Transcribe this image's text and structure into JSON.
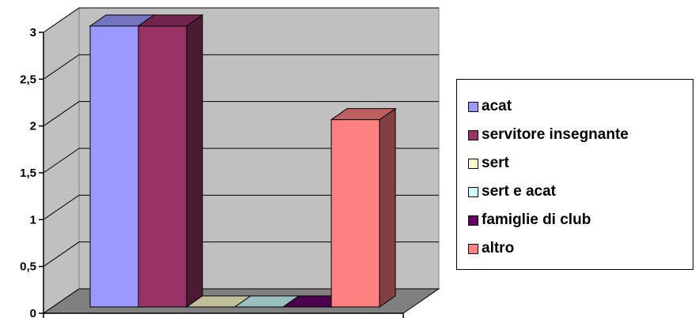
{
  "chart_data": {
    "type": "bar",
    "title": "",
    "xlabel": "",
    "ylabel": "",
    "categories": [
      ""
    ],
    "ylim": [
      0,
      3
    ],
    "yticks": [
      "0",
      "0,5",
      "1",
      "1,5",
      "2",
      "2,5",
      "3"
    ],
    "grid": true,
    "legend_position": "right",
    "series": [
      {
        "name": "acat",
        "values": [
          3
        ],
        "color": "#9999FF"
      },
      {
        "name": "servitore insegnante",
        "values": [
          3
        ],
        "color": "#993366"
      },
      {
        "name": "sert",
        "values": [
          0
        ],
        "color": "#FFFFCC"
      },
      {
        "name": "sert e acat",
        "values": [
          0
        ],
        "color": "#CCFFFF"
      },
      {
        "name": "famiglie di club",
        "values": [
          0
        ],
        "color": "#660066"
      },
      {
        "name": "altro",
        "values": [
          2
        ],
        "color": "#FF8080"
      }
    ],
    "wall_color": "#C0C0C0",
    "floor_color": "#808080"
  }
}
